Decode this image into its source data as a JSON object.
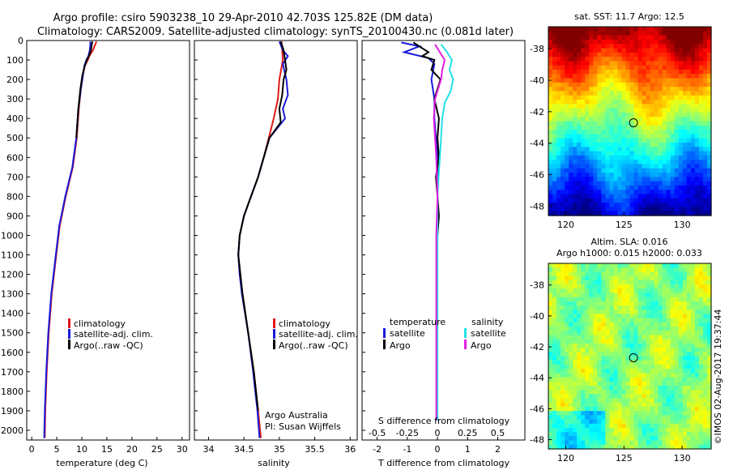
{
  "title": {
    "line1": "Argo profile: csiro 5903238_10 29-Apr-2010 42.703S 125.82E (DM data)",
    "line2": "Climatology: CARS2009. Satellite-adjusted climatology: synTS_20100430.nc (0.081d later)"
  },
  "colors": {
    "climatology": "#e01818",
    "satellite": "#1a1ad8",
    "argo": "#000000",
    "sal_satellite": "#22e0e6",
    "sal_argo": "#e020e0"
  },
  "chart_data": [
    {
      "type": "line",
      "id": "temperature",
      "xlabel": "temperature (deg C)",
      "ylabel": "",
      "xlim": [
        -1,
        31.5
      ],
      "ylim": [
        2050,
        0
      ],
      "xticks": [
        0,
        5,
        10,
        15,
        20,
        25,
        30
      ],
      "yticks": [
        0,
        100,
        200,
        300,
        400,
        500,
        600,
        700,
        800,
        900,
        1000,
        1100,
        1200,
        1300,
        1400,
        1500,
        1600,
        1700,
        1800,
        1900,
        2000
      ],
      "legend": [
        "climatology",
        "satellite-adj. clim.",
        "Argo(..raw -QC)"
      ],
      "legend_position": "lower-right",
      "series": [
        {
          "name": "climatology",
          "color_key": "climatology",
          "depth": [
            5,
            20,
            50,
            80,
            100,
            130,
            180,
            250,
            350,
            500,
            650,
            800,
            950,
            1100,
            1300,
            1500,
            1700,
            1900,
            2040
          ],
          "values": [
            12.9,
            12.7,
            12.2,
            11.5,
            11.2,
            10.6,
            10.2,
            9.8,
            9.4,
            9.0,
            8.2,
            6.8,
            5.6,
            4.9,
            4.0,
            3.4,
            3.0,
            2.7,
            2.6
          ]
        },
        {
          "name": "satellite-adj. clim.",
          "color_key": "satellite",
          "depth": [
            5,
            20,
            50,
            80,
            100,
            130,
            180,
            250,
            350,
            500,
            650,
            800,
            950,
            1100,
            1300,
            1500,
            1700,
            1900,
            2040
          ],
          "values": [
            11.7,
            11.7,
            11.6,
            11.3,
            10.9,
            10.5,
            10.2,
            9.8,
            9.3,
            8.9,
            8.1,
            6.7,
            5.5,
            4.8,
            3.9,
            3.3,
            2.9,
            2.6,
            2.5
          ]
        },
        {
          "name": "Argo(..raw -QC)",
          "color_key": "argo",
          "depth": [
            5,
            20,
            50,
            80,
            100,
            130,
            180,
            250,
            350,
            500
          ],
          "values": [
            12.1,
            12.0,
            11.8,
            11.4,
            11.0,
            10.6,
            10.1,
            9.7,
            9.3,
            8.9
          ]
        }
      ]
    },
    {
      "type": "line",
      "id": "salinity",
      "xlabel": "salinity",
      "ylabel": "",
      "xlim": [
        33.8,
        36.1
      ],
      "ylim": [
        2050,
        0
      ],
      "xticks": [
        34,
        34.5,
        35,
        35.5,
        36
      ],
      "xticklabels": [
        "34",
        "34.5",
        "35",
        "35.5",
        "36"
      ],
      "legend": [
        "climatology",
        "satellite-adj. clim.",
        "Argo(..raw -QC)"
      ],
      "legend_position": "lower-right",
      "annotation": [
        "Argo Australia",
        "PI: Susan Wijffels"
      ],
      "series": [
        {
          "name": "climatology",
          "color_key": "climatology",
          "depth": [
            5,
            50,
            100,
            200,
            300,
            400,
            500,
            600,
            700,
            800,
            900,
            1000,
            1100,
            1200,
            1300,
            1500,
            1700,
            1900,
            2040
          ],
          "values": [
            35.03,
            35.04,
            35.05,
            35.0,
            34.98,
            34.92,
            34.85,
            34.78,
            34.7,
            34.6,
            34.5,
            34.44,
            34.42,
            34.44,
            34.48,
            34.56,
            34.64,
            34.7,
            34.74
          ]
        },
        {
          "name": "satellite-adj. clim.",
          "color_key": "satellite",
          "depth": [
            5,
            50,
            80,
            120,
            200,
            280,
            350,
            400,
            500,
            600,
            700,
            800,
            900,
            1000,
            1100,
            1200,
            1300,
            1500,
            1700,
            1900,
            2040
          ],
          "values": [
            35.0,
            35.05,
            35.12,
            35.05,
            35.1,
            35.12,
            35.05,
            35.08,
            34.86,
            34.78,
            34.7,
            34.6,
            34.5,
            34.44,
            34.42,
            34.44,
            34.47,
            34.56,
            34.63,
            34.69,
            34.72
          ]
        },
        {
          "name": "Argo(..raw -QC)",
          "color_key": "argo",
          "depth": [
            5,
            50,
            100,
            150,
            200,
            280,
            350,
            420,
            500,
            600,
            700,
            800,
            900,
            1000,
            1100,
            1200,
            1300,
            1500,
            1700,
            1900
          ],
          "values": [
            35.02,
            35.06,
            35.08,
            35.1,
            35.06,
            35.04,
            35.0,
            35.02,
            34.86,
            34.78,
            34.7,
            34.6,
            34.5,
            34.44,
            34.42,
            34.45,
            34.48,
            34.56,
            34.64,
            34.7
          ]
        }
      ]
    },
    {
      "type": "line",
      "id": "difference",
      "xlabel": "T difference from climatology",
      "xlabel_top": "S difference from climatology",
      "xlim": [
        -2.5,
        2.9
      ],
      "ylim": [
        2050,
        0
      ],
      "xticks": [
        -2,
        -1,
        0,
        1,
        2
      ],
      "xticklabels": [
        "-2",
        "-1",
        "0",
        "1",
        "2"
      ],
      "xticks_top": [
        -0.5,
        -0.25,
        0,
        0.25,
        0.5
      ],
      "xticklabels_top": [
        "-0.5",
        "-0.25",
        "0",
        "0.25",
        "0.5"
      ],
      "legend_temperature": {
        "heading": "temperature",
        "items": [
          "satellite",
          "Argo"
        ]
      },
      "legend_salinity": {
        "heading": "salinity",
        "items": [
          "satellite",
          "Argo"
        ]
      },
      "series": [
        {
          "name": "T satellite",
          "color_key": "satellite",
          "depth": [
            10,
            30,
            60,
            90,
            120,
            200,
            300,
            400,
            500,
            600,
            700,
            800,
            900,
            1000
          ],
          "values": [
            -1.2,
            -0.6,
            -1.1,
            -0.3,
            -0.1,
            -0.2,
            -0.1,
            -0.1,
            -0.05,
            0.0,
            0.0,
            0.0,
            0.0,
            0.0
          ]
        },
        {
          "name": "T Argo",
          "color_key": "argo",
          "depth": [
            10,
            30,
            60,
            80,
            100,
            150,
            200,
            300,
            400,
            500,
            600,
            700,
            800,
            900,
            1000
          ],
          "values": [
            -0.8,
            -0.6,
            -0.3,
            -0.5,
            -0.1,
            -0.2,
            0.1,
            -0.1,
            0.05,
            0.0,
            0.05,
            -0.05,
            0.0,
            0.05,
            0.0
          ]
        },
        {
          "name": "S satellite",
          "color_key": "sal_satellite",
          "depth": [
            20,
            60,
            100,
            150,
            200,
            260,
            320,
            400,
            500,
            600,
            700,
            800,
            900,
            1000,
            1200,
            1400,
            1600,
            1800,
            1950
          ],
          "values": [
            0.03,
            0.08,
            0.12,
            0.1,
            0.13,
            0.11,
            0.06,
            0.04,
            0.03,
            0.02,
            0.01,
            0.0,
            0.0,
            0.0,
            0.0,
            0.0,
            0.0,
            0.0,
            0.0
          ]
        },
        {
          "name": "S Argo",
          "color_key": "sal_argo",
          "depth": [
            20,
            60,
            100,
            150,
            200,
            300,
            400,
            500,
            600,
            800,
            1000,
            1200,
            1400,
            1600,
            1800,
            1950
          ],
          "values": [
            -0.02,
            0.02,
            0.06,
            0.04,
            0.03,
            -0.02,
            -0.03,
            -0.02,
            -0.01,
            0.0,
            -0.01,
            -0.01,
            -0.01,
            -0.01,
            -0.01,
            -0.01
          ]
        }
      ]
    },
    {
      "type": "heatmap",
      "id": "sst_map",
      "title": "sat. SST: 11.7 Argo: 12.5",
      "xlim": [
        118.5,
        132.5
      ],
      "ylim": [
        -48.6,
        -36.6
      ],
      "xticks": [
        120,
        125,
        130
      ],
      "yticks": [
        -38,
        -40,
        -42,
        -44,
        -46,
        -48
      ],
      "marker": {
        "lon": 125.82,
        "lat": -42.703
      }
    },
    {
      "type": "heatmap",
      "id": "sla_map",
      "title_lines": [
        "Altim. SLA: 0.016",
        "Argo h1000: 0.015 h2000: 0.033"
      ],
      "xlim": [
        118.5,
        132.5
      ],
      "ylim": [
        -48.6,
        -36.6
      ],
      "xticks": [
        120,
        125,
        130
      ],
      "yticks": [
        -38,
        -40,
        -42,
        -44,
        -46,
        -48
      ],
      "marker": {
        "lon": 125.82,
        "lat": -42.703
      }
    }
  ],
  "credit": "©IMOS 02-Aug-2017 19:37:44"
}
